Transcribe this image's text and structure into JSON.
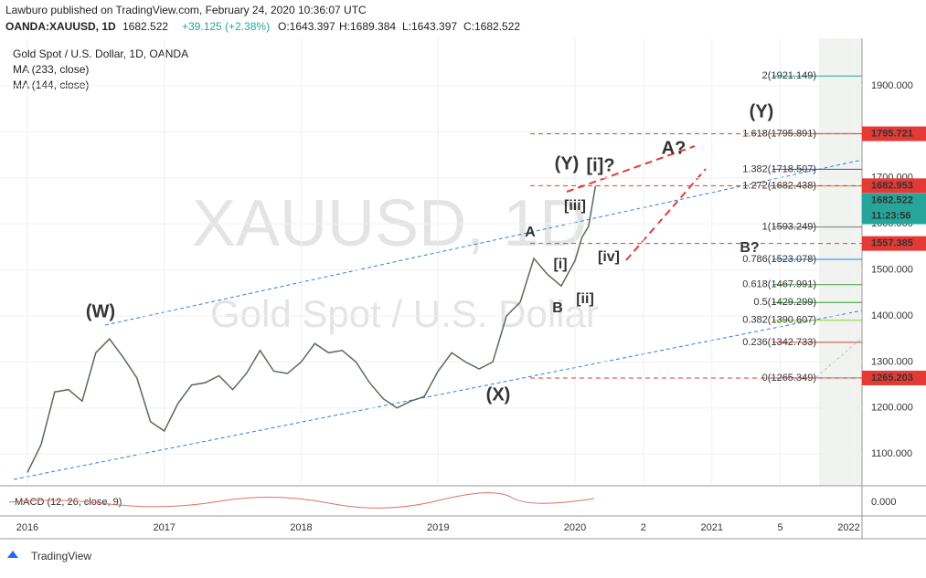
{
  "header": {
    "byline": "Lawburo published on TradingView.com, February 24, 2020 10:36:07 UTC",
    "symbol": "OANDA:XAUUSD, 1D",
    "last": "1682.522",
    "change": "+39.125 (+2.38%)",
    "ohlc": [
      "O:1643.397",
      "H:1689.384",
      "L:1643.397",
      "C:1682.522"
    ],
    "instrument": "Gold Spot / U.S. Dollar, 1D, OANDA",
    "indicators": [
      "MA (233, close)",
      "MA (144, close)"
    ]
  },
  "watermark": [
    "XAUUSD, 1D",
    "Gold Spot / U.S. Dollar"
  ],
  "chart_data": {
    "type": "line",
    "x": [
      2016.0,
      2016.1,
      2016.2,
      2016.3,
      2016.4,
      2016.5,
      2016.6,
      2016.7,
      2016.8,
      2016.9,
      2017.0,
      2017.1,
      2017.2,
      2017.3,
      2017.4,
      2017.5,
      2017.6,
      2017.7,
      2017.8,
      2017.9,
      2018.0,
      2018.1,
      2018.2,
      2018.3,
      2018.4,
      2018.5,
      2018.6,
      2018.7,
      2018.8,
      2018.9,
      2019.0,
      2019.1,
      2019.2,
      2019.3,
      2019.4,
      2019.5,
      2019.6,
      2019.7,
      2019.8,
      2019.9,
      2020.0,
      2020.05,
      2020.1,
      2020.15
    ],
    "series": [
      {
        "name": "XAUUSD",
        "color": "#5a6a5a",
        "values": [
          1060,
          1120,
          1235,
          1240,
          1215,
          1320,
          1350,
          1310,
          1265,
          1170,
          1150,
          1210,
          1250,
          1255,
          1270,
          1240,
          1275,
          1325,
          1280,
          1275,
          1300,
          1340,
          1320,
          1325,
          1300,
          1255,
          1220,
          1200,
          1215,
          1225,
          1280,
          1320,
          1300,
          1285,
          1300,
          1400,
          1430,
          1525,
          1490,
          1465,
          1520,
          1570,
          1595,
          1682.522
        ]
      }
    ],
    "xlim": [
      2015.8,
      2022.097
    ],
    "xticks": [
      2016,
      2017,
      2018,
      2019,
      2020,
      {
        "value": 2020.5,
        "label": "2"
      },
      2021,
      {
        "value": 2021.5,
        "label": "5"
      },
      2022
    ],
    "ylim": [
      1035,
      2003
    ],
    "yticks": [
      {
        "value": 1100,
        "label": "1100.000"
      },
      {
        "value": 1200,
        "label": "1200.000"
      },
      {
        "value": 1300,
        "label": "1300.000"
      },
      {
        "value": 1400,
        "label": "1400.000"
      },
      {
        "value": 1500,
        "label": "1500.000"
      },
      {
        "value": 1600,
        "label": "1600.000"
      },
      {
        "value": 1700,
        "label": "1700.000"
      },
      {
        "value": 1800,
        "label": "1800.000"
      },
      {
        "value": 1900,
        "label": "1900.000"
      }
    ],
    "fib_levels": [
      {
        "label": "2(1921.149)",
        "value": 1921.149,
        "color": "#26a69a"
      },
      {
        "label": "1.618(1795.891)",
        "value": 1795.891,
        "color": "#e53935"
      },
      {
        "label": "1.382(1718.507)",
        "value": 1718.507,
        "color": "#3f51b5"
      },
      {
        "label": "1.272(1682.438)",
        "value": 1682.438,
        "color": "#9e9d24"
      },
      {
        "label": "1(1593.249)",
        "value": 1593.249,
        "color": "#777777"
      },
      {
        "label": "0.786(1523.078)",
        "value": 1523.078,
        "color": "#1e88e5"
      },
      {
        "label": "0.618(1467.991)",
        "value": 1467.991,
        "color": "#43a047"
      },
      {
        "label": "0.5(1429.299)",
        "value": 1429.299,
        "color": "#2e9e2e"
      },
      {
        "label": "0.382(1390.607)",
        "value": 1390.607,
        "color": "#9acd32"
      },
      {
        "label": "0.236(1342.733)",
        "value": 1342.733,
        "color": "#e53935"
      },
      {
        "label": "0(1265.349)",
        "value": 1265.349,
        "color": "#888888"
      }
    ],
    "price_lines": [
      {
        "label": "1795.721",
        "value": 1795.721,
        "color": "#e53935"
      },
      {
        "label": "1682.953",
        "value": 1682.953,
        "color": "#e53935"
      },
      {
        "label": "1557.385",
        "value": 1557.385,
        "color": "#e53935"
      },
      {
        "label": "1265.203",
        "value": 1265.203,
        "color": "#e53935"
      }
    ],
    "last_price": {
      "label": "1682.522",
      "value": 1682.522,
      "color": "#26a69a"
    },
    "countdown": "11:23:56",
    "annotations": [
      "(W)",
      "(X)",
      "(Y)",
      "A",
      "B",
      "[i]",
      "[ii]",
      "[iii]",
      "[iv]",
      "[i]?",
      "A?",
      "B?",
      "(Y)"
    ],
    "macd": {
      "title": "MACD (12, 26, close, 9)",
      "zero": "0.000"
    }
  },
  "footer": "TradingView"
}
